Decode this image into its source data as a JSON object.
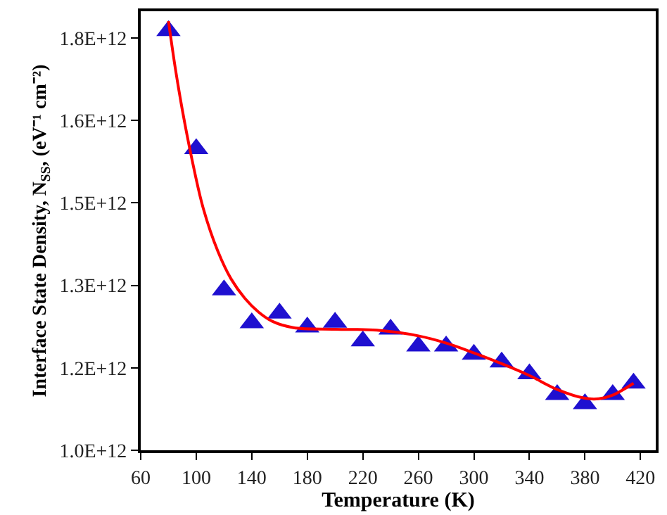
{
  "chart_data": {
    "type": "scatter",
    "xlabel": "Temperature (K)",
    "ylabel": "Interface State Density, N$_{SS}$, (eV⁻¹ cm⁻²)",
    "xlim": [
      60,
      431
    ],
    "xticks": [
      60,
      100,
      140,
      180,
      220,
      260,
      300,
      340,
      380,
      420
    ],
    "ylim": [
      1000000000000.0,
      1852000000000.0
    ],
    "yticks": [
      {
        "value": 1000000000000.0,
        "label": "1.0E+12"
      },
      {
        "value": 1160000000000.0,
        "label": "1.2E+12"
      },
      {
        "value": 1320000000000.0,
        "label": "1.3E+12"
      },
      {
        "value": 1480000000000.0,
        "label": "1.5E+12"
      },
      {
        "value": 1640000000000.0,
        "label": "1.6E+12"
      },
      {
        "value": 1800000000000.0,
        "label": "1.8E+12"
      }
    ],
    "series": [
      {
        "marker": "triangle",
        "color": "#1f10d0",
        "x": [
          80,
          100,
          120,
          140,
          160,
          180,
          200,
          220,
          240,
          260,
          280,
          300,
          320,
          340,
          360,
          380,
          400,
          415
        ],
        "values": [
          1814000000000.0,
          1585000000000.0,
          1311000000000.0,
          1247000000000.0,
          1266000000000.0,
          1239000000000.0,
          1248000000000.0,
          1212000000000.0,
          1235000000000.0,
          1202000000000.0,
          1202000000000.0,
          1186000000000.0,
          1171000000000.0,
          1148000000000.0,
          1108000000000.0,
          1090000000000.0,
          1108000000000.0,
          1130000000000.0
        ]
      },
      {
        "type": "line",
        "marker": "none",
        "line_style": "solid",
        "color": "#ff0000",
        "x": [
          80,
          85,
          90,
          96.5,
          105,
          115.6,
          125,
          135,
          145,
          155,
          170,
          200,
          230,
          260,
          280,
          300,
          320,
          340,
          360,
          380,
          390,
          400,
          415
        ],
        "values": [
          1833000000000.0,
          1740000000000.0,
          1660000000000.0,
          1570000000000.0,
          1470000000000.0,
          1386000000000.0,
          1333000000000.0,
          1295000000000.0,
          1268000000000.0,
          1250000000000.0,
          1238000000000.0,
          1235000000000.0,
          1233000000000.0,
          1222000000000.0,
          1208000000000.0,
          1189000000000.0,
          1168000000000.0,
          1145000000000.0,
          1118000000000.0,
          1101000000000.0,
          1100000000000.0,
          1107000000000.0,
          1130000000000.0
        ]
      }
    ]
  }
}
